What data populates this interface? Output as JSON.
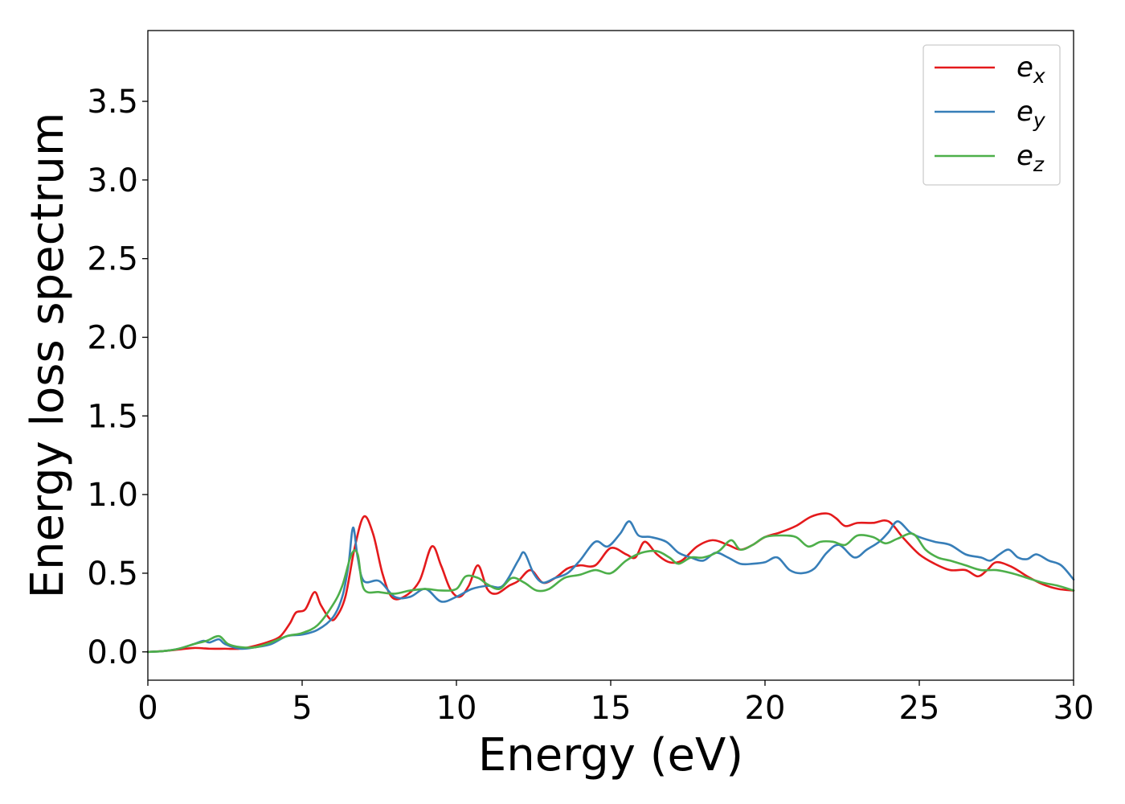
{
  "chart_data": {
    "type": "line",
    "title": "",
    "xlabel": "Energy (eV)",
    "ylabel": "Energy loss spectrum",
    "xlim": [
      0,
      30
    ],
    "ylim": [
      -0.18,
      3.95
    ],
    "xticks": [
      0,
      5,
      10,
      15,
      20,
      25,
      30
    ],
    "xtick_labels": [
      "0",
      "5",
      "10",
      "15",
      "20",
      "25",
      "30"
    ],
    "yticks": [
      0.0,
      0.5,
      1.0,
      1.5,
      2.0,
      2.5,
      3.0,
      3.5
    ],
    "ytick_labels": [
      "0.0",
      "0.5",
      "1.0",
      "1.5",
      "2.0",
      "2.5",
      "3.0",
      "3.5"
    ],
    "grid": false,
    "legend_position": "top-right",
    "series": [
      {
        "name": "e_x",
        "label_base": "e",
        "label_sub": "x",
        "color": "#e41a1c",
        "points": [
          [
            0,
            0.0
          ],
          [
            0.5,
            0.005
          ],
          [
            1.0,
            0.015
          ],
          [
            1.5,
            0.025
          ],
          [
            2.0,
            0.02
          ],
          [
            2.5,
            0.02
          ],
          [
            3.0,
            0.02
          ],
          [
            3.5,
            0.04
          ],
          [
            4.0,
            0.07
          ],
          [
            4.3,
            0.1
          ],
          [
            4.6,
            0.18
          ],
          [
            4.8,
            0.25
          ],
          [
            5.1,
            0.27
          ],
          [
            5.4,
            0.38
          ],
          [
            5.6,
            0.3
          ],
          [
            5.9,
            0.21
          ],
          [
            6.1,
            0.22
          ],
          [
            6.4,
            0.35
          ],
          [
            6.7,
            0.66
          ],
          [
            7.0,
            0.86
          ],
          [
            7.3,
            0.75
          ],
          [
            7.6,
            0.5
          ],
          [
            7.9,
            0.35
          ],
          [
            8.3,
            0.35
          ],
          [
            8.8,
            0.45
          ],
          [
            9.2,
            0.67
          ],
          [
            9.5,
            0.55
          ],
          [
            9.8,
            0.4
          ],
          [
            10.1,
            0.35
          ],
          [
            10.4,
            0.42
          ],
          [
            10.7,
            0.55
          ],
          [
            11.0,
            0.4
          ],
          [
            11.3,
            0.37
          ],
          [
            11.7,
            0.42
          ],
          [
            12.0,
            0.45
          ],
          [
            12.4,
            0.52
          ],
          [
            12.8,
            0.44
          ],
          [
            13.2,
            0.47
          ],
          [
            13.6,
            0.53
          ],
          [
            14.0,
            0.55
          ],
          [
            14.5,
            0.55
          ],
          [
            15.0,
            0.66
          ],
          [
            15.5,
            0.62
          ],
          [
            15.8,
            0.6
          ],
          [
            16.1,
            0.7
          ],
          [
            16.5,
            0.62
          ],
          [
            16.9,
            0.57
          ],
          [
            17.3,
            0.58
          ],
          [
            17.8,
            0.67
          ],
          [
            18.3,
            0.71
          ],
          [
            18.8,
            0.68
          ],
          [
            19.2,
            0.65
          ],
          [
            19.6,
            0.68
          ],
          [
            20.0,
            0.73
          ],
          [
            20.5,
            0.76
          ],
          [
            21.0,
            0.8
          ],
          [
            21.5,
            0.86
          ],
          [
            22.0,
            0.88
          ],
          [
            22.3,
            0.85
          ],
          [
            22.6,
            0.8
          ],
          [
            23.0,
            0.82
          ],
          [
            23.5,
            0.82
          ],
          [
            24.0,
            0.83
          ],
          [
            24.5,
            0.72
          ],
          [
            25.0,
            0.62
          ],
          [
            25.5,
            0.56
          ],
          [
            26.0,
            0.52
          ],
          [
            26.5,
            0.52
          ],
          [
            26.9,
            0.48
          ],
          [
            27.2,
            0.52
          ],
          [
            27.5,
            0.57
          ],
          [
            28.0,
            0.54
          ],
          [
            28.5,
            0.48
          ],
          [
            29.0,
            0.43
          ],
          [
            29.5,
            0.4
          ],
          [
            30.0,
            0.39
          ]
        ]
      },
      {
        "name": "e_y",
        "label_base": "e",
        "label_sub": "y",
        "color": "#377eb8",
        "points": [
          [
            0,
            0.0
          ],
          [
            0.5,
            0.005
          ],
          [
            1.0,
            0.02
          ],
          [
            1.5,
            0.05
          ],
          [
            1.8,
            0.07
          ],
          [
            2.0,
            0.06
          ],
          [
            2.3,
            0.08
          ],
          [
            2.5,
            0.05
          ],
          [
            3.0,
            0.02
          ],
          [
            3.5,
            0.03
          ],
          [
            4.0,
            0.05
          ],
          [
            4.5,
            0.1
          ],
          [
            5.0,
            0.11
          ],
          [
            5.5,
            0.14
          ],
          [
            6.0,
            0.22
          ],
          [
            6.3,
            0.35
          ],
          [
            6.5,
            0.55
          ],
          [
            6.65,
            0.79
          ],
          [
            6.8,
            0.6
          ],
          [
            7.0,
            0.45
          ],
          [
            7.5,
            0.45
          ],
          [
            8.0,
            0.35
          ],
          [
            8.5,
            0.35
          ],
          [
            9.0,
            0.4
          ],
          [
            9.5,
            0.32
          ],
          [
            10.0,
            0.35
          ],
          [
            10.5,
            0.4
          ],
          [
            11.0,
            0.42
          ],
          [
            11.5,
            0.42
          ],
          [
            12.0,
            0.58
          ],
          [
            12.2,
            0.63
          ],
          [
            12.5,
            0.5
          ],
          [
            12.8,
            0.44
          ],
          [
            13.2,
            0.47
          ],
          [
            13.6,
            0.5
          ],
          [
            14.0,
            0.58
          ],
          [
            14.5,
            0.7
          ],
          [
            14.9,
            0.67
          ],
          [
            15.3,
            0.75
          ],
          [
            15.6,
            0.83
          ],
          [
            15.9,
            0.74
          ],
          [
            16.3,
            0.73
          ],
          [
            16.8,
            0.7
          ],
          [
            17.2,
            0.63
          ],
          [
            17.6,
            0.6
          ],
          [
            18.0,
            0.58
          ],
          [
            18.4,
            0.63
          ],
          [
            18.8,
            0.6
          ],
          [
            19.2,
            0.56
          ],
          [
            19.6,
            0.56
          ],
          [
            20.0,
            0.57
          ],
          [
            20.4,
            0.6
          ],
          [
            20.8,
            0.52
          ],
          [
            21.2,
            0.5
          ],
          [
            21.6,
            0.53
          ],
          [
            22.0,
            0.63
          ],
          [
            22.4,
            0.68
          ],
          [
            22.9,
            0.6
          ],
          [
            23.3,
            0.65
          ],
          [
            23.7,
            0.7
          ],
          [
            24.0,
            0.76
          ],
          [
            24.3,
            0.83
          ],
          [
            24.7,
            0.76
          ],
          [
            25.0,
            0.73
          ],
          [
            25.5,
            0.7
          ],
          [
            26.0,
            0.68
          ],
          [
            26.5,
            0.62
          ],
          [
            27.0,
            0.6
          ],
          [
            27.3,
            0.58
          ],
          [
            27.6,
            0.62
          ],
          [
            27.9,
            0.65
          ],
          [
            28.2,
            0.6
          ],
          [
            28.5,
            0.59
          ],
          [
            28.8,
            0.62
          ],
          [
            29.2,
            0.58
          ],
          [
            29.6,
            0.55
          ],
          [
            30.0,
            0.46
          ]
        ]
      },
      {
        "name": "e_z",
        "label_base": "e",
        "label_sub": "z",
        "color": "#4daf4a",
        "points": [
          [
            0,
            0.0
          ],
          [
            0.5,
            0.005
          ],
          [
            1.0,
            0.02
          ],
          [
            1.5,
            0.05
          ],
          [
            1.9,
            0.07
          ],
          [
            2.3,
            0.1
          ],
          [
            2.6,
            0.05
          ],
          [
            3.0,
            0.03
          ],
          [
            3.5,
            0.03
          ],
          [
            4.0,
            0.06
          ],
          [
            4.5,
            0.1
          ],
          [
            5.0,
            0.12
          ],
          [
            5.5,
            0.17
          ],
          [
            6.0,
            0.3
          ],
          [
            6.3,
            0.42
          ],
          [
            6.6,
            0.62
          ],
          [
            6.8,
            0.62
          ],
          [
            7.0,
            0.4
          ],
          [
            7.5,
            0.38
          ],
          [
            8.0,
            0.37
          ],
          [
            8.5,
            0.39
          ],
          [
            9.0,
            0.4
          ],
          [
            9.5,
            0.39
          ],
          [
            10.0,
            0.4
          ],
          [
            10.3,
            0.48
          ],
          [
            10.7,
            0.47
          ],
          [
            11.0,
            0.43
          ],
          [
            11.4,
            0.4
          ],
          [
            11.8,
            0.47
          ],
          [
            12.2,
            0.44
          ],
          [
            12.6,
            0.39
          ],
          [
            13.0,
            0.4
          ],
          [
            13.5,
            0.47
          ],
          [
            14.0,
            0.49
          ],
          [
            14.5,
            0.52
          ],
          [
            15.0,
            0.5
          ],
          [
            15.5,
            0.58
          ],
          [
            16.0,
            0.63
          ],
          [
            16.5,
            0.64
          ],
          [
            16.9,
            0.6
          ],
          [
            17.2,
            0.56
          ],
          [
            17.6,
            0.6
          ],
          [
            18.0,
            0.6
          ],
          [
            18.5,
            0.64
          ],
          [
            18.9,
            0.71
          ],
          [
            19.2,
            0.65
          ],
          [
            19.6,
            0.68
          ],
          [
            20.0,
            0.73
          ],
          [
            20.5,
            0.74
          ],
          [
            21.0,
            0.73
          ],
          [
            21.4,
            0.67
          ],
          [
            21.8,
            0.7
          ],
          [
            22.2,
            0.7
          ],
          [
            22.6,
            0.68
          ],
          [
            23.0,
            0.74
          ],
          [
            23.5,
            0.73
          ],
          [
            23.9,
            0.69
          ],
          [
            24.3,
            0.72
          ],
          [
            24.8,
            0.75
          ],
          [
            25.2,
            0.65
          ],
          [
            25.6,
            0.6
          ],
          [
            26.0,
            0.58
          ],
          [
            26.5,
            0.55
          ],
          [
            27.0,
            0.52
          ],
          [
            27.5,
            0.52
          ],
          [
            28.0,
            0.5
          ],
          [
            28.5,
            0.47
          ],
          [
            29.0,
            0.44
          ],
          [
            29.5,
            0.42
          ],
          [
            30.0,
            0.39
          ]
        ]
      }
    ]
  }
}
